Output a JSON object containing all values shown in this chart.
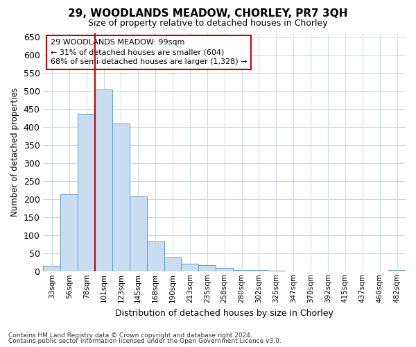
{
  "title": "29, WOODLANDS MEADOW, CHORLEY, PR7 3QH",
  "subtitle": "Size of property relative to detached houses in Chorley",
  "xlabel": "Distribution of detached houses by size in Chorley",
  "ylabel": "Number of detached properties",
  "categories": [
    "33sqm",
    "56sqm",
    "78sqm",
    "101sqm",
    "123sqm",
    "145sqm",
    "168sqm",
    "190sqm",
    "213sqm",
    "235sqm",
    "258sqm",
    "280sqm",
    "302sqm",
    "325sqm",
    "347sqm",
    "370sqm",
    "392sqm",
    "415sqm",
    "437sqm",
    "460sqm",
    "482sqm"
  ],
  "values": [
    15,
    213,
    436,
    503,
    410,
    207,
    84,
    38,
    22,
    18,
    10,
    5,
    4,
    2,
    1,
    0,
    0,
    0,
    0,
    0,
    4
  ],
  "bar_color": "#c9ddf0",
  "bar_edge_color": "#5b9bd5",
  "annotation_text_line1": "29 WOODLANDS MEADOW: 99sqm",
  "annotation_text_line2": "← 31% of detached houses are smaller (604)",
  "annotation_text_line3": "68% of semi-detached houses are larger (1,328) →",
  "annotation_box_color": "#ffffff",
  "annotation_box_edge_color": "#cc0000",
  "footnote1": "Contains HM Land Registry data © Crown copyright and database right 2024.",
  "footnote2": "Contains public sector information licensed under the Open Government Licence v3.0.",
  "ylim": [
    0,
    660
  ],
  "yticks": [
    0,
    50,
    100,
    150,
    200,
    250,
    300,
    350,
    400,
    450,
    500,
    550,
    600,
    650
  ],
  "bg_color": "#ffffff",
  "grid_color": "#c8d4e8",
  "subject_line_color": "#cc0000",
  "subject_bar_index": 3
}
